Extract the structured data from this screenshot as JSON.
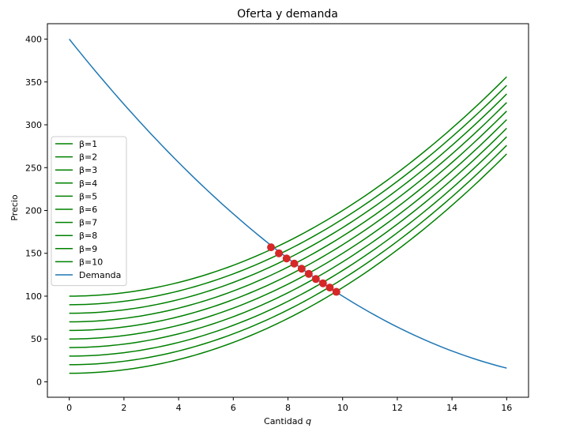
{
  "chart_data": {
    "type": "line",
    "title": "Oferta y demanda",
    "xlabel": "Cantidad q",
    "ylabel": "Precio",
    "xlim": [
      -0.8,
      16.8
    ],
    "ylim": [
      -18,
      418
    ],
    "xticks": [
      0,
      2,
      4,
      6,
      8,
      10,
      12,
      14,
      16
    ],
    "yticks": [
      0,
      50,
      100,
      150,
      200,
      250,
      300,
      350,
      400
    ],
    "grid": false,
    "legend_position": "center-left",
    "supply": {
      "color": "#008000",
      "x_range": [
        0,
        16
      ],
      "series": [
        {
          "name": "β=1",
          "values_at_x": {
            "0": 10,
            "16": 266
          }
        },
        {
          "name": "β=2",
          "values_at_x": {
            "0": 20,
            "16": 276
          }
        },
        {
          "name": "β=3",
          "values_at_x": {
            "0": 30,
            "16": 286
          }
        },
        {
          "name": "β=4",
          "values_at_x": {
            "0": 40,
            "16": 296
          }
        },
        {
          "name": "β=5",
          "values_at_x": {
            "0": 50,
            "16": 306
          }
        },
        {
          "name": "β=6",
          "values_at_x": {
            "0": 60,
            "16": 316
          }
        },
        {
          "name": "β=7",
          "values_at_x": {
            "0": 70,
            "16": 326
          }
        },
        {
          "name": "β=8",
          "values_at_x": {
            "0": 80,
            "16": 336
          }
        },
        {
          "name": "β=9",
          "values_at_x": {
            "0": 90,
            "16": 346
          }
        },
        {
          "name": "β=10",
          "values_at_x": {
            "0": 100,
            "16": 356
          }
        }
      ]
    },
    "demand": {
      "name": "Demanda",
      "color": "#1f77b4",
      "x_range": [
        0,
        16
      ],
      "points": [
        {
          "x": 0,
          "y": 400
        },
        {
          "x": 2,
          "y": 324
        },
        {
          "x": 4,
          "y": 256
        },
        {
          "x": 6,
          "y": 196
        },
        {
          "x": 8,
          "y": 144
        },
        {
          "x": 10,
          "y": 100
        },
        {
          "x": 12,
          "y": 64
        },
        {
          "x": 14,
          "y": 36
        },
        {
          "x": 16,
          "y": 16
        }
      ]
    },
    "equilibria": {
      "color": "#d62728",
      "points": [
        {
          "x": 9.77,
          "y": 105
        },
        {
          "x": 9.53,
          "y": 110
        },
        {
          "x": 9.28,
          "y": 115
        },
        {
          "x": 9.02,
          "y": 120
        },
        {
          "x": 8.76,
          "y": 126
        },
        {
          "x": 8.5,
          "y": 132
        },
        {
          "x": 8.23,
          "y": 138
        },
        {
          "x": 7.95,
          "y": 144
        },
        {
          "x": 7.67,
          "y": 150
        },
        {
          "x": 7.38,
          "y": 157
        }
      ]
    }
  }
}
